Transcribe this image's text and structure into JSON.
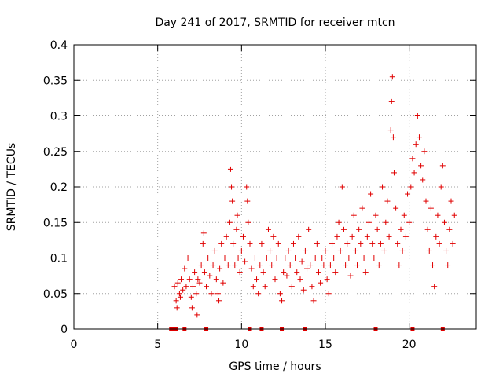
{
  "chart_data": {
    "type": "scatter",
    "title": "Day 241 of 2017, SRMTID for receiver mtcn",
    "xlabel": "GPS time / hours",
    "ylabel": "SRMTID / TECUs",
    "xlim": [
      0,
      24
    ],
    "ylim": [
      0,
      0.4
    ],
    "xticks": [
      0,
      5,
      10,
      15,
      20
    ],
    "xtick_labels": [
      "0",
      "5",
      "10",
      "15",
      "20"
    ],
    "yticks": [
      0,
      0.05,
      0.1,
      0.15,
      0.2,
      0.25,
      0.3,
      0.35,
      0.4
    ],
    "ytick_labels": [
      "0",
      "0.05",
      "0.1",
      "0.15",
      "0.2",
      "0.25",
      "0.3",
      "0.35",
      "0.4"
    ],
    "grid": true,
    "marker": "plus",
    "color": "#e00000",
    "series": [
      {
        "name": "SRMTID",
        "points": [
          [
            6.0,
            0.06
          ],
          [
            6.1,
            0.04
          ],
          [
            6.15,
            0.03
          ],
          [
            6.2,
            0.065
          ],
          [
            6.3,
            0.05
          ],
          [
            6.35,
            0.045
          ],
          [
            6.4,
            0.07
          ],
          [
            6.5,
            0.055
          ],
          [
            6.6,
            0.085
          ],
          [
            6.7,
            0.06
          ],
          [
            6.8,
            0.1
          ],
          [
            6.9,
            0.07
          ],
          [
            7.0,
            0.045
          ],
          [
            7.05,
            0.03
          ],
          [
            7.1,
            0.06
          ],
          [
            7.2,
            0.08
          ],
          [
            7.3,
            0.05
          ],
          [
            7.35,
            0.02
          ],
          [
            7.4,
            0.07
          ],
          [
            7.5,
            0.065
          ],
          [
            7.6,
            0.09
          ],
          [
            7.7,
            0.12
          ],
          [
            7.75,
            0.135
          ],
          [
            7.8,
            0.08
          ],
          [
            7.9,
            0.06
          ],
          [
            8.0,
            0.1
          ],
          [
            8.1,
            0.075
          ],
          [
            8.2,
            0.05
          ],
          [
            8.3,
            0.09
          ],
          [
            8.4,
            0.11
          ],
          [
            8.5,
            0.07
          ],
          [
            8.6,
            0.05
          ],
          [
            8.65,
            0.04
          ],
          [
            8.7,
            0.085
          ],
          [
            8.8,
            0.12
          ],
          [
            8.9,
            0.065
          ],
          [
            9.0,
            0.1
          ],
          [
            9.1,
            0.13
          ],
          [
            9.2,
            0.09
          ],
          [
            9.3,
            0.15
          ],
          [
            9.35,
            0.225
          ],
          [
            9.4,
            0.2
          ],
          [
            9.45,
            0.18
          ],
          [
            9.5,
            0.12
          ],
          [
            9.6,
            0.09
          ],
          [
            9.7,
            0.14
          ],
          [
            9.75,
            0.16
          ],
          [
            9.8,
            0.1
          ],
          [
            9.9,
            0.08
          ],
          [
            10.0,
            0.11
          ],
          [
            10.1,
            0.13
          ],
          [
            10.2,
            0.095
          ],
          [
            10.3,
            0.2
          ],
          [
            10.35,
            0.18
          ],
          [
            10.4,
            0.15
          ],
          [
            10.5,
            0.12
          ],
          [
            10.6,
            0.085
          ],
          [
            10.7,
            0.06
          ],
          [
            10.8,
            0.1
          ],
          [
            10.9,
            0.07
          ],
          [
            11.0,
            0.05
          ],
          [
            11.1,
            0.09
          ],
          [
            11.2,
            0.12
          ],
          [
            11.3,
            0.08
          ],
          [
            11.4,
            0.06
          ],
          [
            11.5,
            0.1
          ],
          [
            11.6,
            0.14
          ],
          [
            11.7,
            0.11
          ],
          [
            11.8,
            0.09
          ],
          [
            11.9,
            0.13
          ],
          [
            12.0,
            0.07
          ],
          [
            12.1,
            0.1
          ],
          [
            12.2,
            0.12
          ],
          [
            12.3,
            0.05
          ],
          [
            12.4,
            0.04
          ],
          [
            12.5,
            0.08
          ],
          [
            12.6,
            0.1
          ],
          [
            12.7,
            0.075
          ],
          [
            12.8,
            0.11
          ],
          [
            12.9,
            0.09
          ],
          [
            13.0,
            0.06
          ],
          [
            13.1,
            0.12
          ],
          [
            13.2,
            0.1
          ],
          [
            13.3,
            0.08
          ],
          [
            13.4,
            0.13
          ],
          [
            13.5,
            0.07
          ],
          [
            13.6,
            0.095
          ],
          [
            13.7,
            0.055
          ],
          [
            13.8,
            0.11
          ],
          [
            13.9,
            0.085
          ],
          [
            14.0,
            0.14
          ],
          [
            14.1,
            0.09
          ],
          [
            14.2,
            0.06
          ],
          [
            14.3,
            0.04
          ],
          [
            14.4,
            0.1
          ],
          [
            14.5,
            0.12
          ],
          [
            14.6,
            0.08
          ],
          [
            14.7,
            0.065
          ],
          [
            14.8,
            0.1
          ],
          [
            14.9,
            0.09
          ],
          [
            15.0,
            0.11
          ],
          [
            15.1,
            0.07
          ],
          [
            15.2,
            0.05
          ],
          [
            15.3,
            0.09
          ],
          [
            15.4,
            0.12
          ],
          [
            15.5,
            0.1
          ],
          [
            15.6,
            0.08
          ],
          [
            15.7,
            0.13
          ],
          [
            15.8,
            0.15
          ],
          [
            15.9,
            0.11
          ],
          [
            16.0,
            0.2
          ],
          [
            16.1,
            0.14
          ],
          [
            16.2,
            0.09
          ],
          [
            16.3,
            0.12
          ],
          [
            16.4,
            0.1
          ],
          [
            16.5,
            0.075
          ],
          [
            16.6,
            0.13
          ],
          [
            16.7,
            0.16
          ],
          [
            16.8,
            0.11
          ],
          [
            16.9,
            0.09
          ],
          [
            17.0,
            0.14
          ],
          [
            17.1,
            0.12
          ],
          [
            17.2,
            0.17
          ],
          [
            17.3,
            0.1
          ],
          [
            17.4,
            0.08
          ],
          [
            17.5,
            0.13
          ],
          [
            17.6,
            0.15
          ],
          [
            17.7,
            0.19
          ],
          [
            17.8,
            0.12
          ],
          [
            17.9,
            0.1
          ],
          [
            18.0,
            0.16
          ],
          [
            18.1,
            0.14
          ],
          [
            18.2,
            0.09
          ],
          [
            18.3,
            0.12
          ],
          [
            18.4,
            0.2
          ],
          [
            18.5,
            0.11
          ],
          [
            18.6,
            0.15
          ],
          [
            18.7,
            0.18
          ],
          [
            18.8,
            0.13
          ],
          [
            18.9,
            0.28
          ],
          [
            18.95,
            0.32
          ],
          [
            19.0,
            0.355
          ],
          [
            19.05,
            0.27
          ],
          [
            19.1,
            0.22
          ],
          [
            19.2,
            0.17
          ],
          [
            19.3,
            0.12
          ],
          [
            19.4,
            0.09
          ],
          [
            19.5,
            0.14
          ],
          [
            19.6,
            0.11
          ],
          [
            19.7,
            0.16
          ],
          [
            19.8,
            0.13
          ],
          [
            19.9,
            0.19
          ],
          [
            20.0,
            0.15
          ],
          [
            20.1,
            0.2
          ],
          [
            20.2,
            0.24
          ],
          [
            20.3,
            0.22
          ],
          [
            20.4,
            0.26
          ],
          [
            20.5,
            0.3
          ],
          [
            20.6,
            0.27
          ],
          [
            20.7,
            0.23
          ],
          [
            20.8,
            0.21
          ],
          [
            20.9,
            0.25
          ],
          [
            21.0,
            0.18
          ],
          [
            21.1,
            0.14
          ],
          [
            21.2,
            0.11
          ],
          [
            21.3,
            0.17
          ],
          [
            21.4,
            0.09
          ],
          [
            21.5,
            0.06
          ],
          [
            21.6,
            0.13
          ],
          [
            21.7,
            0.16
          ],
          [
            21.8,
            0.12
          ],
          [
            21.9,
            0.2
          ],
          [
            22.0,
            0.23
          ],
          [
            22.1,
            0.15
          ],
          [
            22.2,
            0.11
          ],
          [
            22.3,
            0.09
          ],
          [
            22.4,
            0.14
          ],
          [
            22.5,
            0.18
          ],
          [
            22.6,
            0.12
          ],
          [
            22.7,
            0.16
          ]
        ]
      }
    ],
    "bottom_markers": {
      "description": "gap/event markers along x axis",
      "x": [
        5.8,
        6.0,
        6.1,
        6.6,
        7.9,
        10.5,
        11.2,
        12.4,
        13.8,
        18.0,
        20.2,
        22.0
      ]
    }
  }
}
